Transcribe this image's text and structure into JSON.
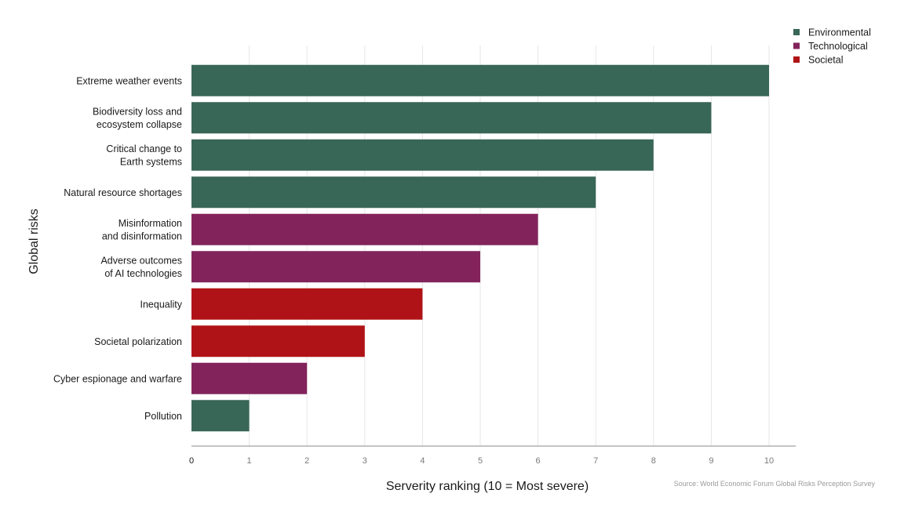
{
  "chart_data": {
    "type": "bar",
    "orientation": "horizontal",
    "categories": [
      [
        "Extreme weather events"
      ],
      [
        "Biodiversity loss and",
        "ecosystem collapse"
      ],
      [
        "Critical change to",
        "Earth systems"
      ],
      [
        "Natural resource shortages"
      ],
      [
        "Misinformation",
        "and disinformation"
      ],
      [
        "Adverse outcomes",
        "of AI technologies"
      ],
      [
        "Inequality"
      ],
      [
        "Societal polarization"
      ],
      [
        "Cyber espionage and warfare"
      ],
      [
        "Pollution"
      ]
    ],
    "values": [
      10,
      9,
      8,
      7,
      6,
      5,
      4,
      3,
      2,
      1
    ],
    "groups": [
      "Environmental",
      "Environmental",
      "Environmental",
      "Environmental",
      "Technological",
      "Technological",
      "Societal",
      "Societal",
      "Technological",
      "Environmental"
    ],
    "legend": [
      {
        "name": "Environmental",
        "color": "#386657"
      },
      {
        "name": "Technological",
        "color": "#82245b"
      },
      {
        "name": "Societal",
        "color": "#b01317"
      }
    ],
    "legend_position": "top-right",
    "xlabel": "Serverity ranking (10 = Most severe)",
    "ylabel": "Global risks",
    "xlim": [
      0,
      10.5
    ],
    "xticks": [
      0,
      1,
      2,
      3,
      4,
      5,
      6,
      7,
      8,
      9,
      10
    ],
    "grid": "vertical",
    "source": "Source: World Economic Forum Global Risks Perception Survey"
  }
}
